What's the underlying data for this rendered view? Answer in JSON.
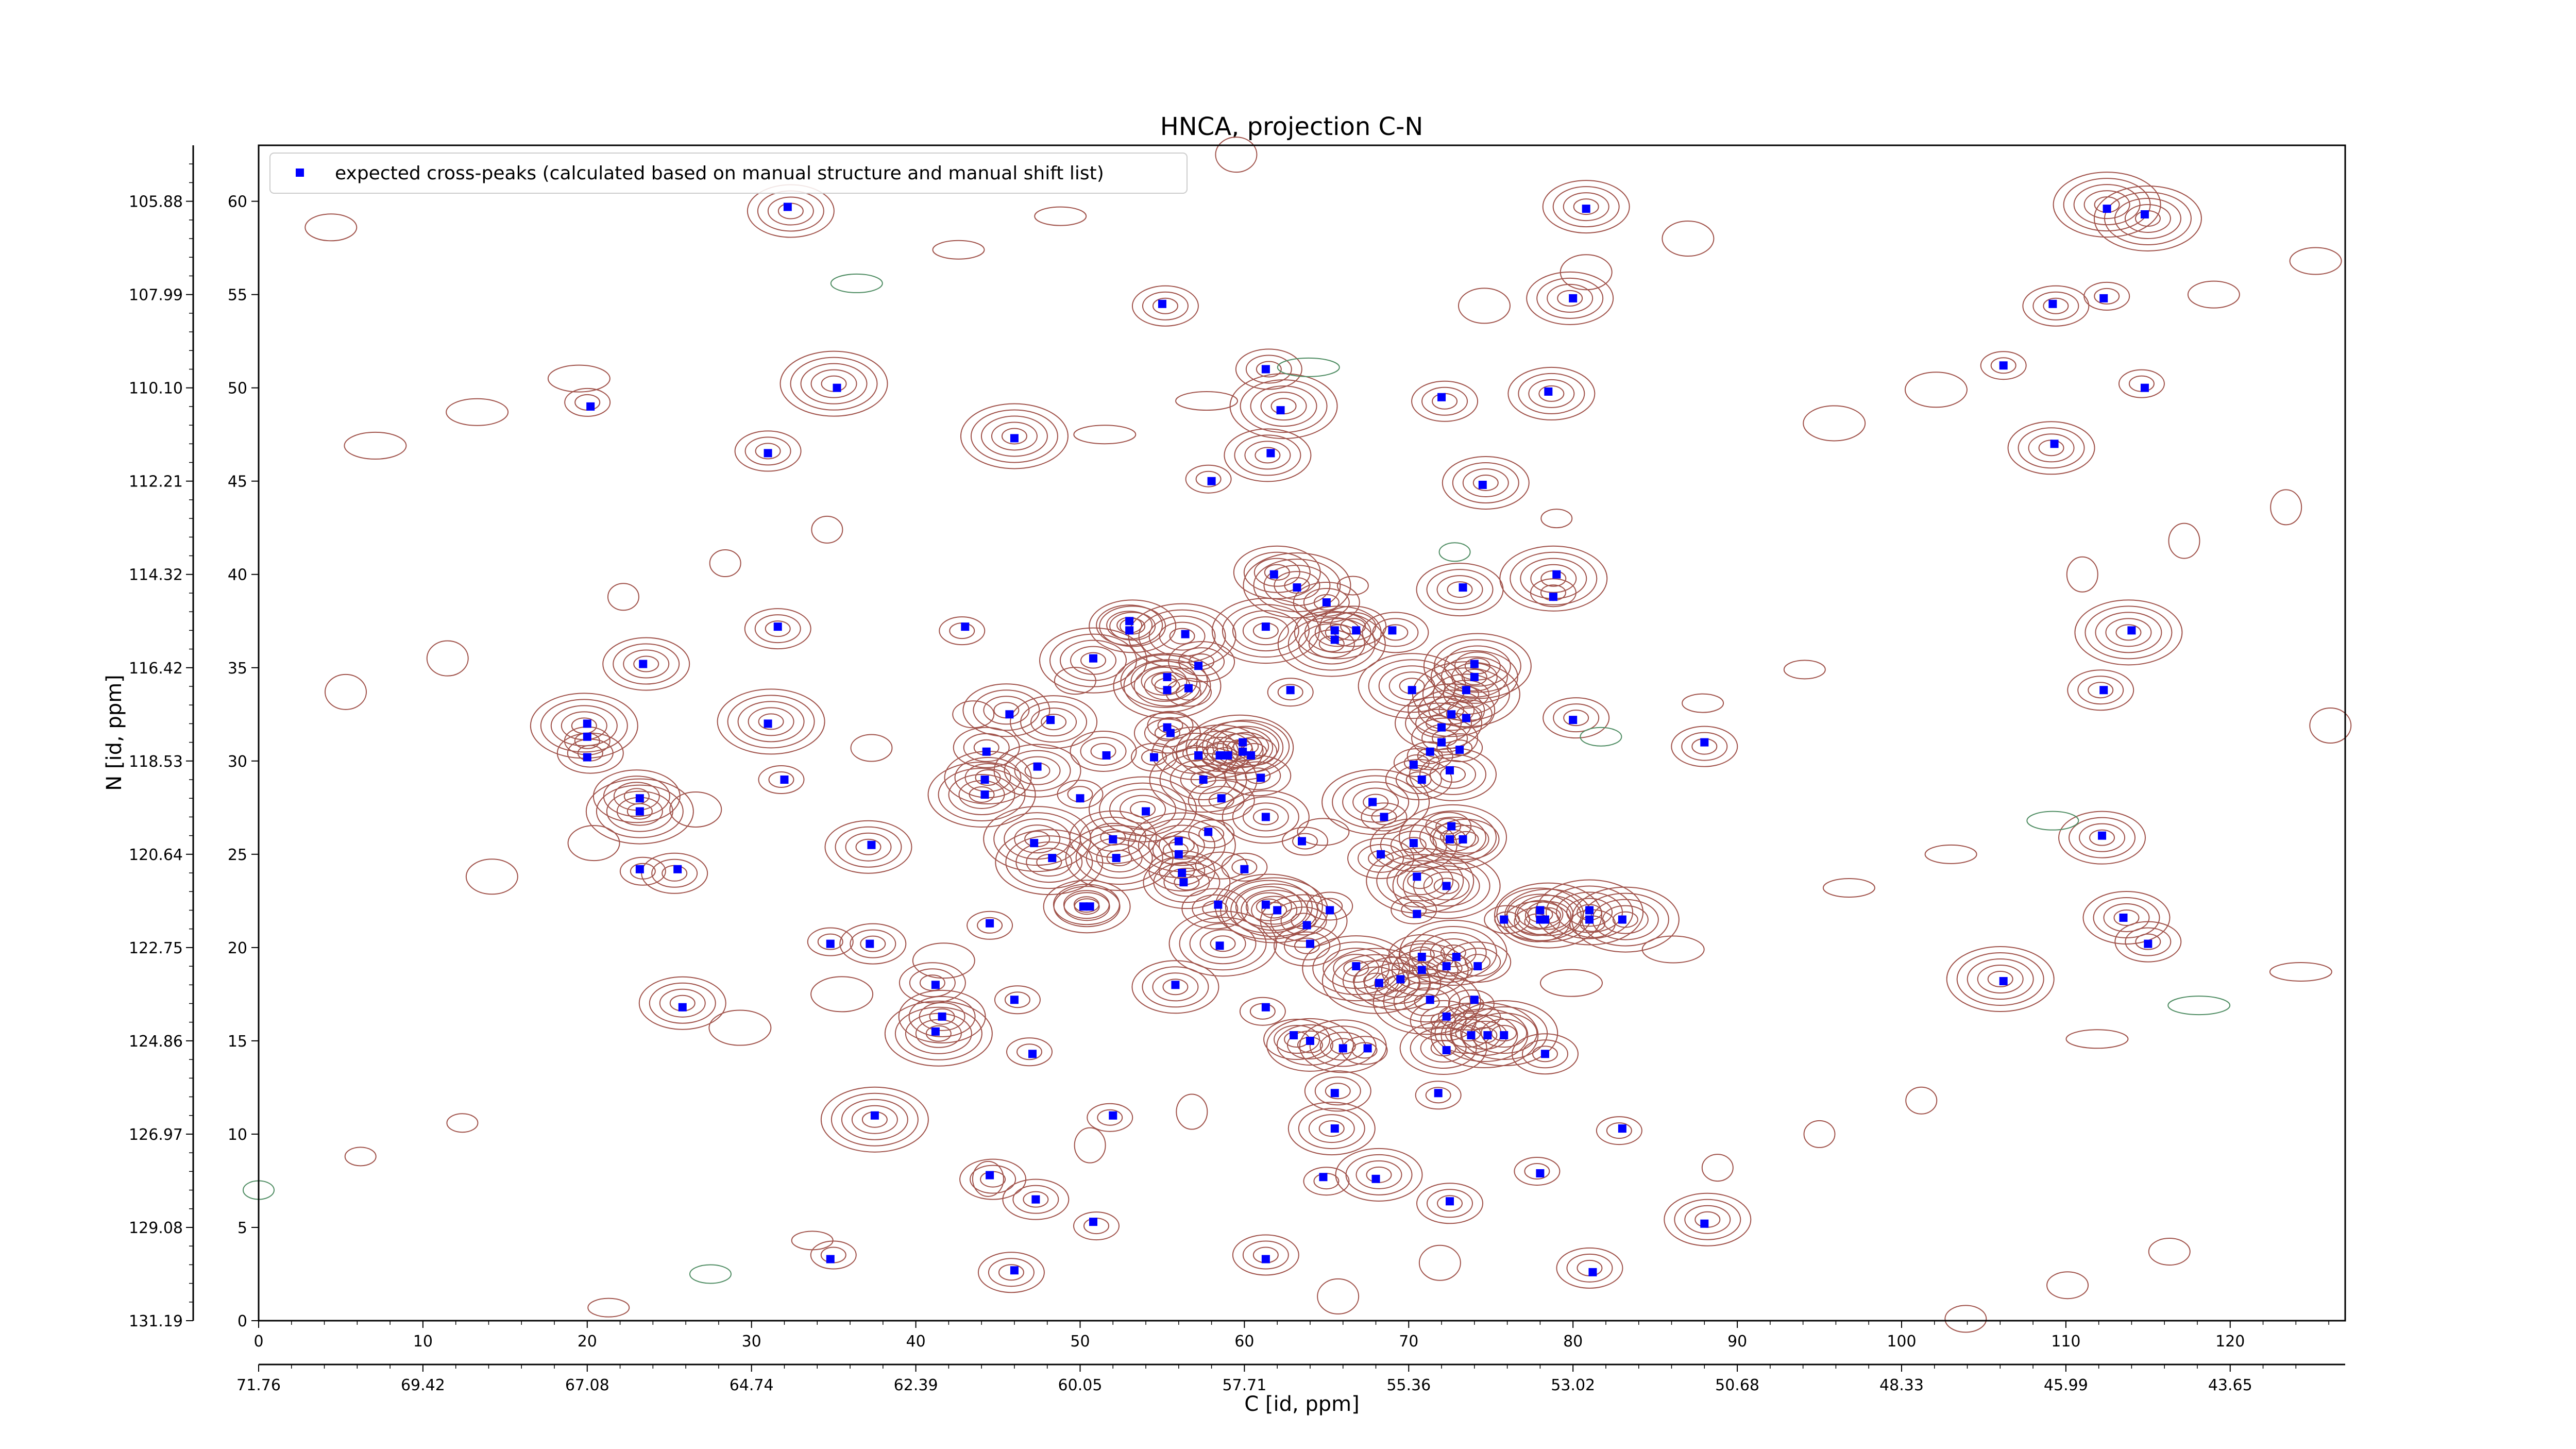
{
  "chart_data": {
    "type": "scatter",
    "title": "HNCA, projection C-N",
    "xlabel": "C [id, ppm]",
    "ylabel": "N [id, ppm]",
    "xlim": [
      0,
      127
    ],
    "ylim": [
      0,
      63
    ],
    "x_ticks": [
      0,
      10,
      20,
      30,
      40,
      50,
      60,
      70,
      80,
      90,
      100,
      110,
      120
    ],
    "y_ticks": [
      0,
      5,
      10,
      15,
      20,
      25,
      30,
      35,
      40,
      45,
      50,
      55,
      60
    ],
    "secondary_x_ticks": [
      "71.76",
      "69.42",
      "67.08",
      "64.74",
      "62.39",
      "60.05",
      "57.71",
      "55.36",
      "53.02",
      "50.68",
      "48.33",
      "45.99",
      "43.65"
    ],
    "secondary_y_ticks": [
      "131.19",
      "129.08",
      "126.97",
      "124.86",
      "122.75",
      "120.64",
      "118.53",
      "116.42",
      "114.32",
      "112.21",
      "110.10",
      "107.99",
      "105.88"
    ],
    "legend": {
      "location": "upper-left",
      "entry": "expected cross-peaks (calculated based on manual structure and manual shift list)"
    },
    "colors": {
      "marker": "#0000ff",
      "positive_contour": "#a0524a",
      "negative_contour": "#4e8c62"
    },
    "series": [
      {
        "name": "expected cross-peaks (calculated based on manual structure and manual shift list)",
        "points": [
          [
            20.2,
            49.0
          ],
          [
            31.0,
            46.5
          ],
          [
            23.4,
            35.2
          ],
          [
            20.0,
            32.0
          ],
          [
            20.0,
            31.3
          ],
          [
            20.0,
            30.2
          ],
          [
            23.2,
            28.0
          ],
          [
            23.2,
            27.3
          ],
          [
            23.2,
            24.2
          ],
          [
            25.5,
            24.2
          ],
          [
            25.8,
            16.8
          ],
          [
            31.0,
            32.0
          ],
          [
            32.0,
            29.0
          ],
          [
            31.6,
            37.2
          ],
          [
            32.2,
            59.7
          ],
          [
            35.2,
            50.0
          ],
          [
            34.8,
            20.2
          ],
          [
            37.2,
            20.2
          ],
          [
            37.3,
            25.5
          ],
          [
            37.5,
            11.0
          ],
          [
            34.8,
            3.3
          ],
          [
            41.2,
            18.0
          ],
          [
            41.6,
            16.3
          ],
          [
            41.2,
            15.5
          ],
          [
            43.0,
            37.2
          ],
          [
            44.3,
            30.5
          ],
          [
            44.2,
            29.0
          ],
          [
            44.2,
            28.2
          ],
          [
            44.5,
            21.3
          ],
          [
            44.5,
            7.8
          ],
          [
            45.7,
            32.5
          ],
          [
            46.0,
            47.3
          ],
          [
            46.0,
            17.2
          ],
          [
            46.0,
            2.7
          ],
          [
            47.4,
            29.7
          ],
          [
            47.2,
            25.6
          ],
          [
            47.1,
            14.3
          ],
          [
            47.3,
            6.5
          ],
          [
            48.2,
            32.2
          ],
          [
            48.3,
            24.8
          ],
          [
            50.0,
            28.0
          ],
          [
            50.2,
            22.2
          ],
          [
            50.6,
            22.2
          ],
          [
            50.8,
            35.5
          ],
          [
            50.8,
            5.3
          ],
          [
            51.6,
            30.3
          ],
          [
            52.0,
            25.8
          ],
          [
            52.2,
            24.8
          ],
          [
            52.0,
            11.0
          ],
          [
            53.0,
            37.5
          ],
          [
            53.0,
            37.0
          ],
          [
            54.0,
            27.3
          ],
          [
            54.5,
            30.2
          ],
          [
            55.0,
            54.5
          ],
          [
            55.3,
            34.5
          ],
          [
            55.3,
            33.8
          ],
          [
            55.3,
            31.8
          ],
          [
            55.5,
            31.5
          ],
          [
            55.8,
            18.0
          ],
          [
            56.0,
            25.7
          ],
          [
            56.0,
            25.0
          ],
          [
            56.2,
            24.0
          ],
          [
            56.3,
            23.5
          ],
          [
            56.4,
            36.8
          ],
          [
            56.6,
            33.9
          ],
          [
            57.2,
            35.1
          ],
          [
            57.2,
            30.3
          ],
          [
            57.5,
            29.0
          ],
          [
            57.8,
            26.2
          ],
          [
            58.4,
            22.3
          ],
          [
            58.5,
            30.3
          ],
          [
            58.5,
            20.1
          ],
          [
            59.0,
            30.3
          ],
          [
            58.6,
            28.0
          ],
          [
            59.9,
            31.0
          ],
          [
            59.9,
            30.5
          ],
          [
            60.0,
            24.2
          ],
          [
            61.3,
            51.0
          ],
          [
            61.6,
            46.5
          ],
          [
            61.3,
            37.2
          ],
          [
            60.4,
            30.3
          ],
          [
            61.0,
            29.1
          ],
          [
            61.3,
            27.0
          ],
          [
            61.3,
            22.3
          ],
          [
            61.3,
            16.8
          ],
          [
            61.3,
            3.3
          ],
          [
            61.8,
            40.0
          ],
          [
            62.0,
            22.0
          ],
          [
            62.8,
            33.8
          ],
          [
            63.0,
            15.3
          ],
          [
            63.8,
            21.2
          ],
          [
            63.2,
            39.3
          ],
          [
            63.5,
            25.7
          ],
          [
            64.0,
            20.2
          ],
          [
            64.0,
            15.0
          ],
          [
            62.2,
            48.8
          ],
          [
            58.0,
            45.0
          ],
          [
            65.0,
            38.5
          ],
          [
            65.5,
            37.0
          ],
          [
            65.5,
            36.5
          ],
          [
            65.2,
            22.0
          ],
          [
            65.5,
            12.2
          ],
          [
            65.5,
            10.3
          ],
          [
            66.8,
            19.0
          ],
          [
            64.8,
            7.7
          ],
          [
            66.8,
            37.0
          ],
          [
            66.0,
            14.6
          ],
          [
            67.8,
            27.8
          ],
          [
            67.5,
            14.6
          ],
          [
            68.3,
            25.0
          ],
          [
            68.0,
            7.6
          ],
          [
            68.2,
            18.1
          ],
          [
            68.5,
            27.0
          ],
          [
            69.0,
            37.0
          ],
          [
            69.5,
            18.3
          ],
          [
            70.2,
            33.8
          ],
          [
            70.3,
            29.8
          ],
          [
            70.8,
            29.0
          ],
          [
            70.3,
            25.6
          ],
          [
            70.5,
            23.8
          ],
          [
            70.5,
            21.8
          ],
          [
            70.8,
            19.5
          ],
          [
            70.8,
            18.8
          ],
          [
            71.3,
            17.2
          ],
          [
            71.3,
            30.5
          ],
          [
            72.0,
            31.0
          ],
          [
            72.3,
            14.5
          ],
          [
            72.3,
            23.3
          ],
          [
            72.3,
            19.0
          ],
          [
            72.3,
            16.3
          ],
          [
            72.6,
            32.5
          ],
          [
            72.5,
            25.8
          ],
          [
            72.6,
            26.5
          ],
          [
            72.5,
            6.4
          ],
          [
            72.5,
            29.5
          ],
          [
            72.9,
            19.5
          ],
          [
            73.1,
            30.6
          ],
          [
            73.3,
            25.8
          ],
          [
            73.3,
            39.3
          ],
          [
            73.5,
            33.8
          ],
          [
            73.5,
            32.3
          ],
          [
            73.8,
            15.3
          ],
          [
            74.0,
            34.5
          ],
          [
            74.0,
            35.2
          ],
          [
            74.0,
            17.2
          ],
          [
            74.2,
            19.0
          ],
          [
            74.5,
            44.8
          ],
          [
            74.8,
            15.3
          ],
          [
            71.8,
            12.2
          ],
          [
            72.0,
            49.5
          ],
          [
            72.0,
            31.8
          ],
          [
            75.8,
            15.3
          ],
          [
            75.8,
            21.5
          ],
          [
            78.0,
            21.5
          ],
          [
            78.0,
            22.0
          ],
          [
            78.3,
            21.5
          ],
          [
            78.0,
            7.9
          ],
          [
            78.3,
            14.3
          ],
          [
            78.5,
            49.8
          ],
          [
            79.0,
            40.0
          ],
          [
            78.8,
            38.8
          ],
          [
            80.0,
            32.2
          ],
          [
            80.0,
            54.8
          ],
          [
            81.0,
            22.0
          ],
          [
            81.0,
            21.5
          ],
          [
            81.2,
            2.6
          ],
          [
            80.8,
            59.6
          ],
          [
            83.0,
            21.5
          ],
          [
            83.0,
            10.3
          ],
          [
            88.0,
            31.0
          ],
          [
            88.0,
            5.2
          ],
          [
            106.2,
            18.2
          ],
          [
            106.2,
            51.2
          ],
          [
            109.2,
            54.5
          ],
          [
            109.3,
            47.0
          ],
          [
            112.5,
            59.6
          ],
          [
            112.3,
            54.8
          ],
          [
            112.3,
            33.8
          ],
          [
            112.2,
            26.0
          ],
          [
            114.8,
            59.3
          ],
          [
            114.8,
            50.0
          ],
          [
            115.0,
            20.2
          ],
          [
            113.5,
            21.6
          ],
          [
            114.0,
            37.0
          ]
        ]
      }
    ]
  }
}
